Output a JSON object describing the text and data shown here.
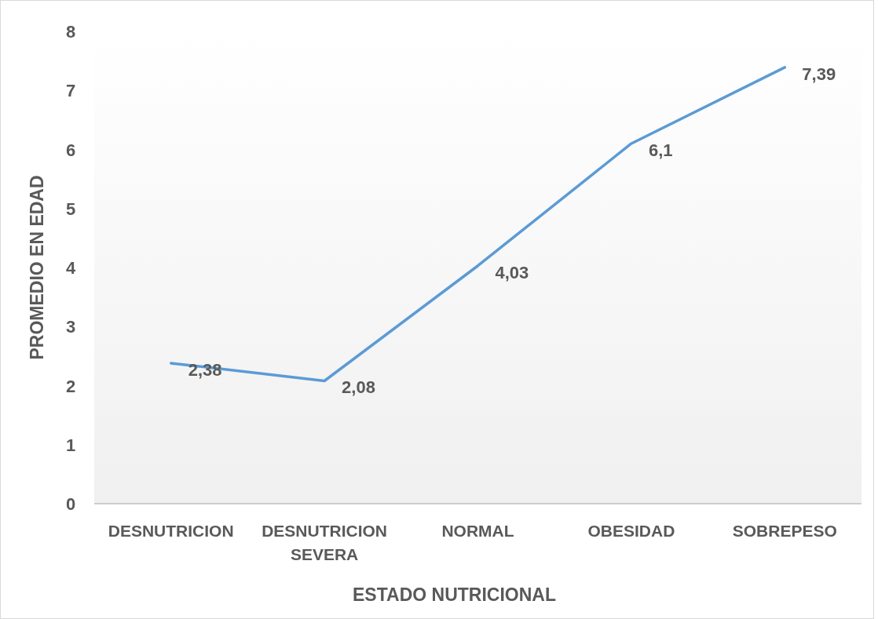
{
  "chart_data": {
    "type": "line",
    "xlabel": "ESTADO NUTRICIONAL",
    "ylabel": "PROMEDIO EN EDAD",
    "categories": [
      "DESNUTRICION",
      "DESNUTRICION SEVERA",
      "NORMAL",
      "OBESIDAD",
      "SOBREPESO"
    ],
    "series": [
      {
        "color": "#5b9bd5",
        "values": [
          2.38,
          2.08,
          4.03,
          6.1,
          7.39
        ],
        "value_labels": [
          "2,38",
          "2,08",
          "4,03",
          "6,1",
          "7,39"
        ]
      }
    ],
    "ylim": [
      0,
      8
    ],
    "yticks": [
      0,
      1,
      2,
      3,
      4,
      5,
      6,
      7,
      8
    ],
    "grid": false,
    "marker": "none",
    "line_style": "solid"
  }
}
